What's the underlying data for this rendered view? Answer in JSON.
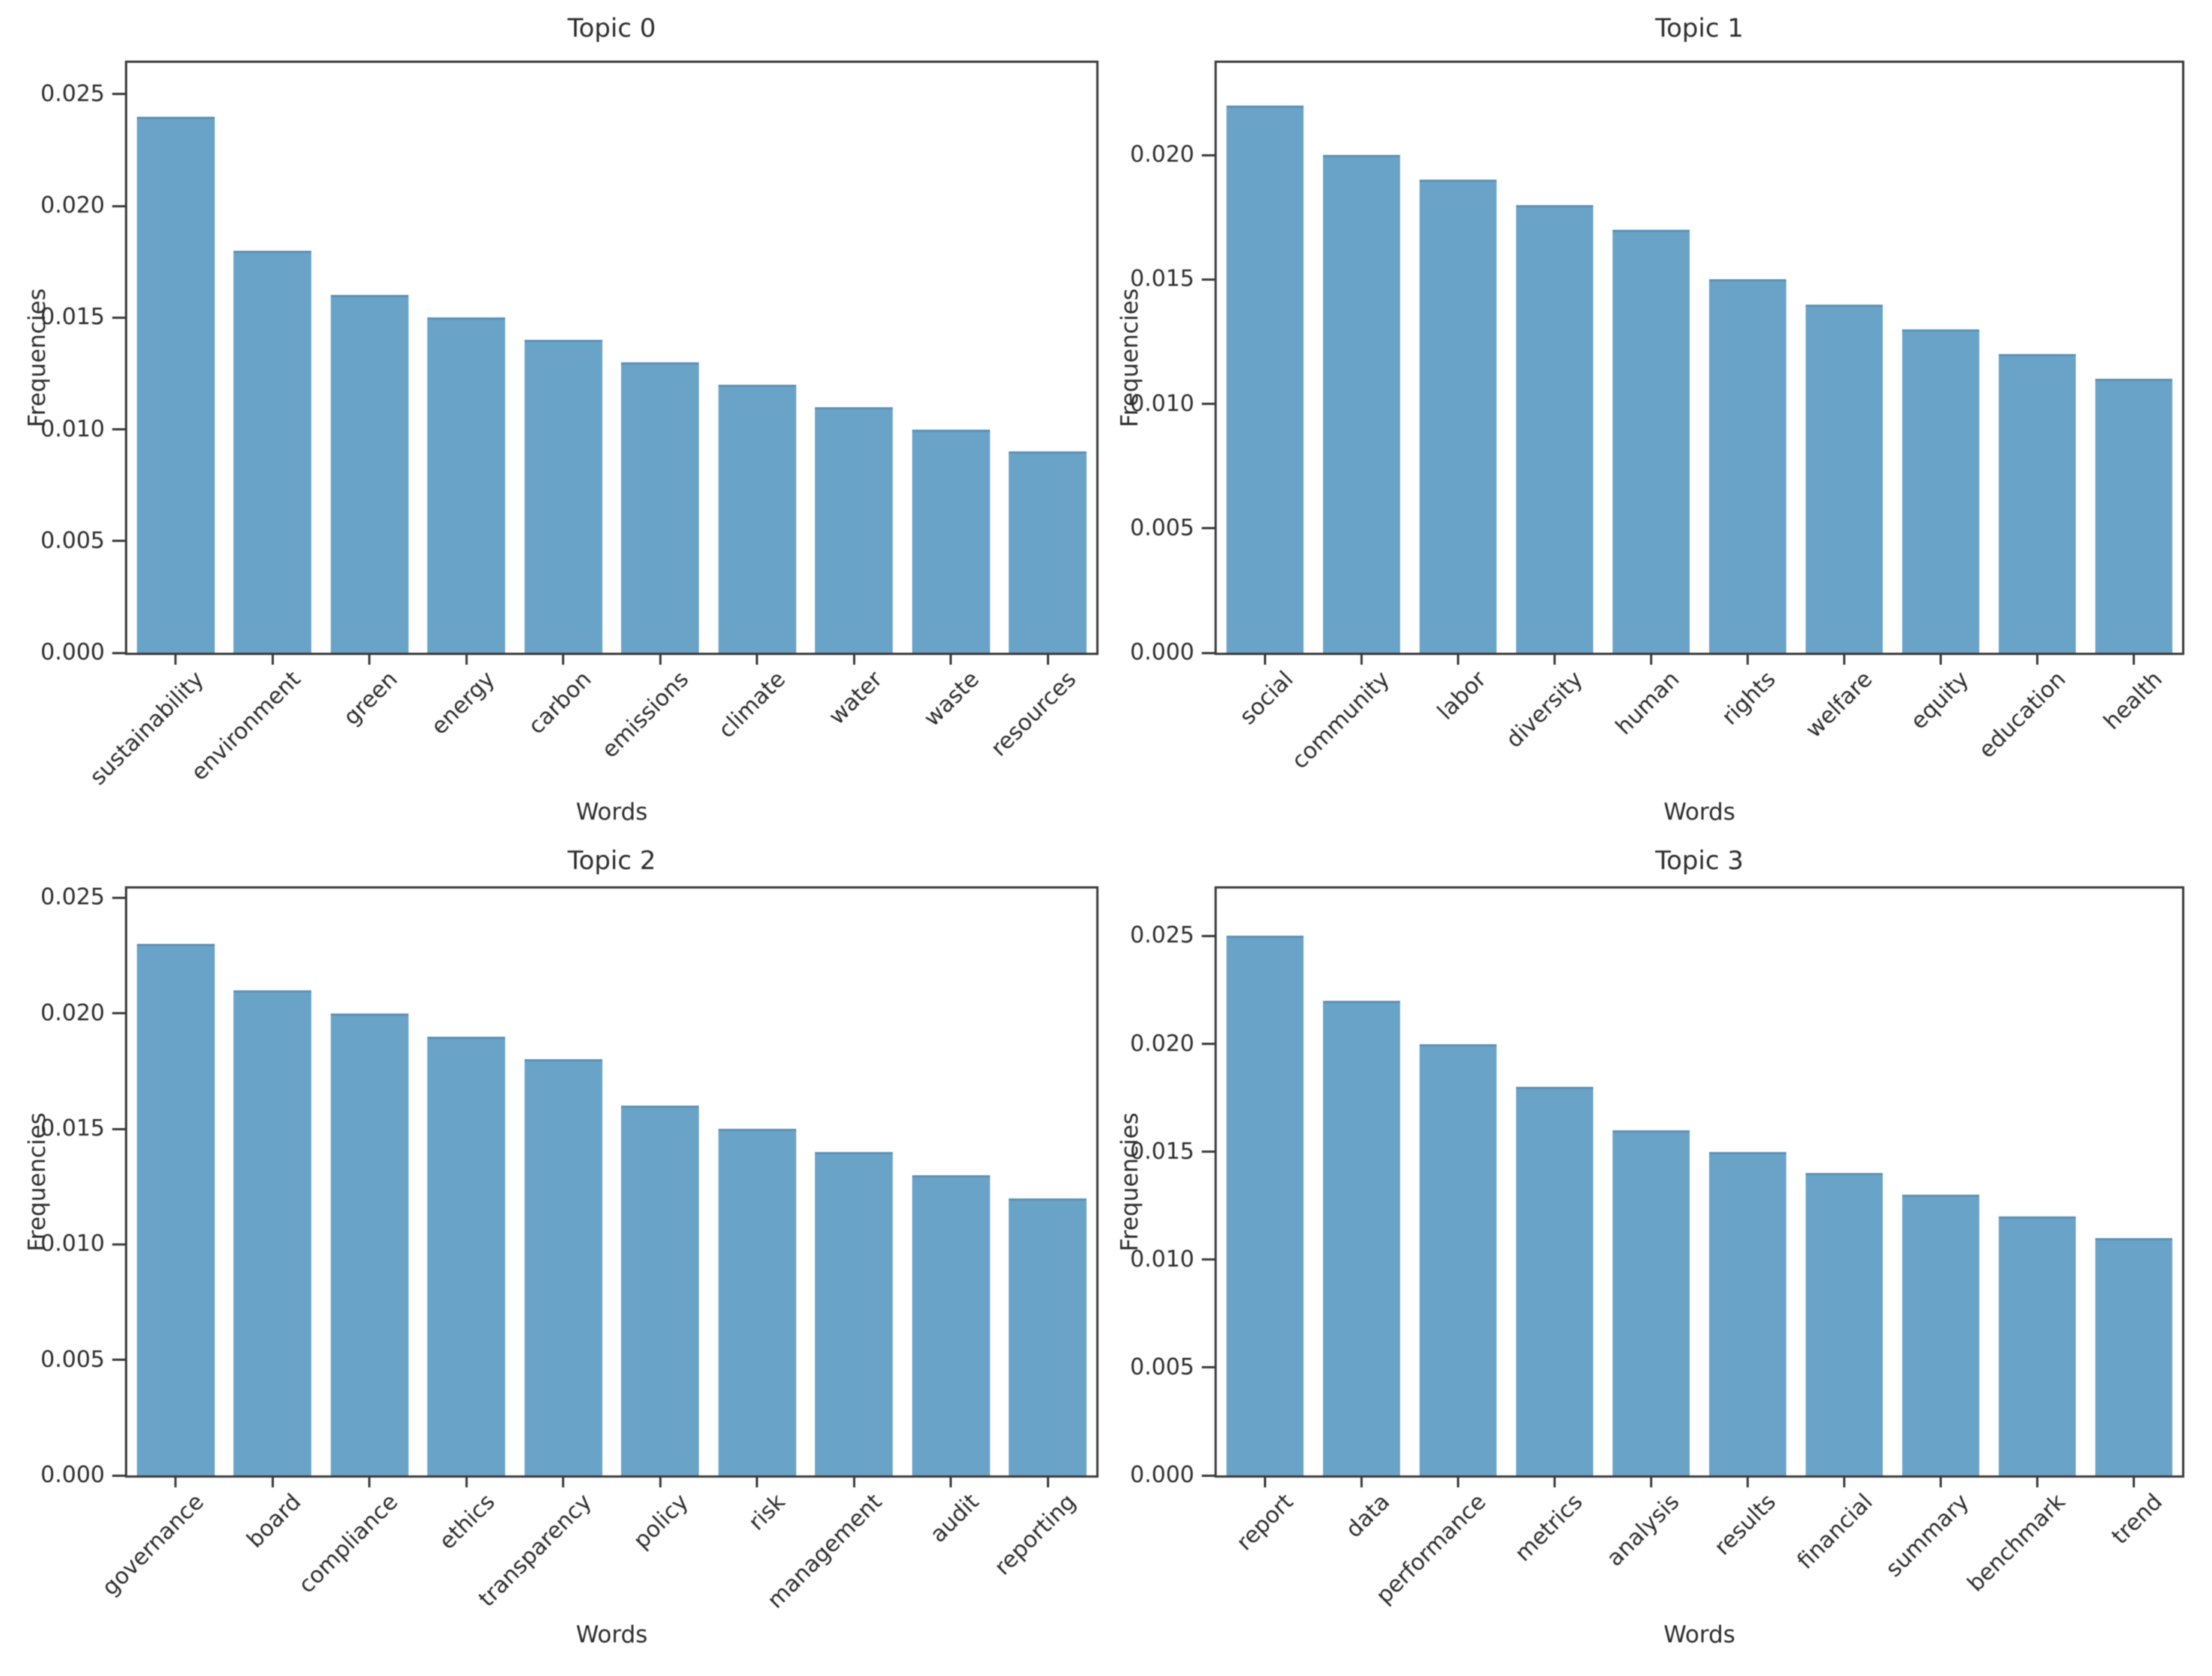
{
  "figure": {
    "background_color": "#ffffff",
    "bar_color": "#6aa3c8",
    "spine_color": "#3a3a3a",
    "text_color": "#2d2d2d"
  },
  "chart_data": [
    {
      "type": "bar",
      "title": "Topic 0",
      "xlabel": "Words",
      "ylabel": "Frequencies",
      "categories": [
        "sustainability",
        "environment",
        "green",
        "energy",
        "carbon",
        "emissions",
        "climate",
        "water",
        "waste",
        "resources"
      ],
      "values": [
        0.024,
        0.018,
        0.016,
        0.015,
        0.014,
        0.013,
        0.012,
        0.011,
        0.01,
        0.009
      ],
      "yticks": [
        0.0,
        0.005,
        0.01,
        0.015,
        0.02,
        0.025
      ],
      "ylim": [
        0,
        0.0264
      ],
      "grid": false,
      "legend": null,
      "bar_color": "#6aa3c8"
    },
    {
      "type": "bar",
      "title": "Topic 1",
      "xlabel": "Words",
      "ylabel": "Frequencies",
      "categories": [
        "social",
        "community",
        "labor",
        "diversity",
        "human",
        "rights",
        "welfare",
        "equity",
        "education",
        "health"
      ],
      "values": [
        0.022,
        0.02,
        0.019,
        0.018,
        0.017,
        0.015,
        0.014,
        0.013,
        0.012,
        0.011
      ],
      "yticks": [
        0.0,
        0.005,
        0.01,
        0.015,
        0.02
      ],
      "ylim": [
        0,
        0.0237
      ],
      "grid": false,
      "legend": null,
      "bar_color": "#6aa3c8"
    },
    {
      "type": "bar",
      "title": "Topic 2",
      "xlabel": "Words",
      "ylabel": "Frequencies",
      "categories": [
        "governance",
        "board",
        "compliance",
        "ethics",
        "transparency",
        "policy",
        "risk",
        "management",
        "audit",
        "reporting"
      ],
      "values": [
        0.023,
        0.021,
        0.02,
        0.019,
        0.018,
        0.016,
        0.015,
        0.014,
        0.013,
        0.012
      ],
      "yticks": [
        0.0,
        0.005,
        0.01,
        0.015,
        0.02,
        0.025
      ],
      "ylim": [
        0,
        0.0254
      ],
      "grid": false,
      "legend": null,
      "bar_color": "#6aa3c8"
    },
    {
      "type": "bar",
      "title": "Topic 3",
      "xlabel": "Words",
      "ylabel": "Frequencies",
      "categories": [
        "report",
        "data",
        "performance",
        "metrics",
        "analysis",
        "results",
        "financial",
        "summary",
        "benchmark",
        "trend"
      ],
      "values": [
        0.025,
        0.022,
        0.02,
        0.018,
        0.016,
        0.015,
        0.014,
        0.013,
        0.012,
        0.011
      ],
      "yticks": [
        0.0,
        0.005,
        0.01,
        0.015,
        0.02,
        0.025
      ],
      "ylim": [
        0,
        0.0272
      ],
      "grid": false,
      "legend": null,
      "bar_color": "#6aa3c8"
    }
  ]
}
